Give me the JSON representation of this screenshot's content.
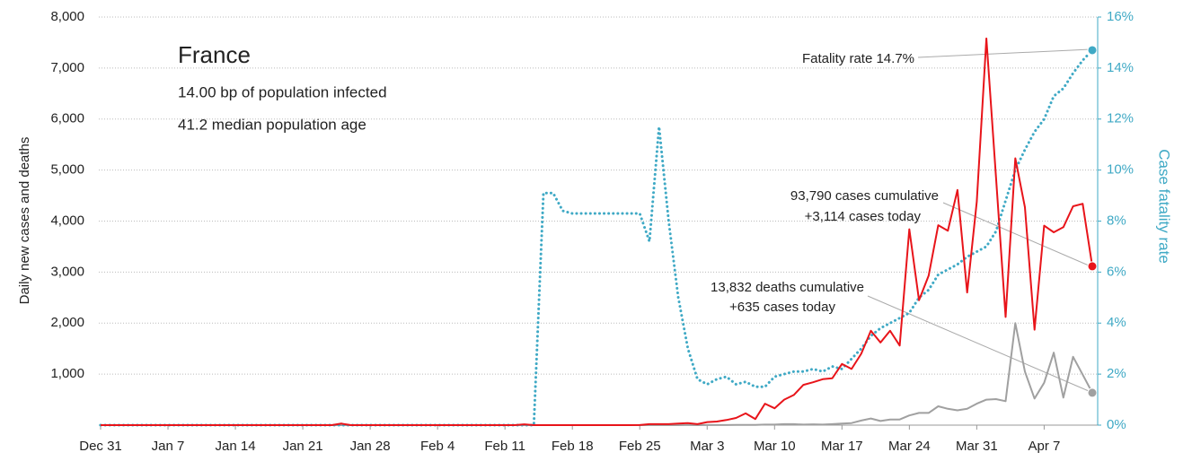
{
  "chart_data": {
    "type": "line",
    "annotations": [
      "France",
      "14.00 bp of population infected",
      "41.2 median population age",
      "Fatality rate 14.7%",
      "93,790 cases cumulative",
      "+3,114 cases today",
      "13,832 deaths cumulative",
      "+635 cases today"
    ],
    "ylabel": "Daily new cases and deaths",
    "y2label": "Case fatality rate",
    "categories": [
      "Dec 31",
      null,
      null,
      null,
      null,
      null,
      null,
      "Jan 7",
      null,
      null,
      null,
      null,
      null,
      null,
      "Jan 14",
      null,
      null,
      null,
      null,
      null,
      null,
      "Jan 21",
      null,
      null,
      null,
      null,
      null,
      null,
      "Jan 28",
      null,
      null,
      null,
      null,
      null,
      null,
      "Feb 4",
      null,
      null,
      null,
      null,
      null,
      null,
      "Feb 11",
      null,
      null,
      null,
      null,
      null,
      null,
      "Feb 18",
      null,
      null,
      null,
      null,
      null,
      null,
      "Feb 25",
      null,
      null,
      null,
      null,
      null,
      null,
      "Mar 3",
      null,
      null,
      null,
      null,
      null,
      null,
      "Mar 10",
      null,
      null,
      null,
      null,
      null,
      null,
      "Mar 17",
      null,
      null,
      null,
      null,
      null,
      null,
      "Mar 24",
      null,
      null,
      null,
      null,
      null,
      null,
      "Mar 31",
      null,
      null,
      null,
      null,
      null,
      null,
      "Apr 7",
      null,
      null,
      null,
      null,
      null
    ],
    "series": [
      {
        "name": "Cases",
        "color": "#e8141a",
        "style": "solid",
        "values": [
          0,
          0,
          0,
          0,
          0,
          0,
          0,
          0,
          0,
          0,
          0,
          0,
          0,
          0,
          0,
          0,
          0,
          0,
          0,
          0,
          0,
          0,
          0,
          0,
          0,
          30,
          0,
          0,
          0,
          0,
          0,
          0,
          0,
          0,
          0,
          0,
          0,
          0,
          0,
          0,
          0,
          0,
          0,
          0,
          15,
          0,
          0,
          0,
          0,
          0,
          0,
          0,
          0,
          0,
          0,
          0,
          2,
          20,
          20,
          20,
          30,
          40,
          20,
          60,
          70,
          100,
          140,
          230,
          120,
          420,
          330,
          500,
          590,
          790,
          840,
          900,
          920,
          1200,
          1100,
          1400,
          1850,
          1620,
          1850,
          1560,
          3840,
          2450,
          2930,
          3920,
          3810,
          4610,
          2600,
          4380,
          7580,
          4860,
          2120,
          5230,
          4270,
          1870,
          3910,
          3780,
          3880,
          4290,
          4340,
          3114
        ]
      },
      {
        "name": "Deaths",
        "color": "#a0a0a0",
        "style": "solid",
        "values": [
          0,
          0,
          0,
          0,
          0,
          0,
          0,
          0,
          0,
          0,
          0,
          0,
          0,
          0,
          0,
          0,
          0,
          0,
          0,
          0,
          0,
          0,
          0,
          0,
          0,
          0,
          0,
          0,
          0,
          0,
          0,
          0,
          0,
          0,
          0,
          0,
          0,
          0,
          0,
          0,
          0,
          0,
          0,
          0,
          0,
          0,
          0,
          0,
          0,
          0,
          0,
          0,
          0,
          0,
          0,
          0,
          0,
          0,
          0,
          0,
          0,
          1,
          0,
          1,
          1,
          2,
          3,
          5,
          5,
          10,
          10,
          20,
          20,
          10,
          15,
          10,
          20,
          30,
          40,
          90,
          130,
          80,
          110,
          110,
          190,
          240,
          240,
          370,
          320,
          290,
          320,
          420,
          500,
          510,
          470,
          2000,
          1050,
          520,
          830,
          1420,
          540,
          1340,
          990,
          635
        ]
      },
      {
        "name": "Fatality rate",
        "color": "#3fa9c5",
        "style": "dotted",
        "axis": "y2",
        "values": [
          0,
          0,
          0,
          0,
          0,
          0,
          0,
          0,
          0,
          0,
          0,
          0,
          0,
          0,
          0,
          0,
          0,
          0,
          0,
          0,
          0,
          0,
          0,
          0,
          0,
          0,
          0,
          0,
          0,
          0,
          0,
          0,
          0,
          0,
          0,
          0,
          0,
          0,
          0,
          0,
          0,
          0,
          0,
          0,
          0,
          0,
          9.1,
          9.1,
          8.4,
          8.3,
          8.3,
          8.3,
          8.3,
          8.3,
          8.3,
          8.3,
          8.3,
          7.2,
          11.7,
          8.0,
          5.0,
          3.0,
          1.8,
          1.6,
          1.8,
          1.9,
          1.6,
          1.7,
          1.5,
          1.5,
          1.9,
          2.0,
          2.1,
          2.1,
          2.2,
          2.1,
          2.3,
          2.2,
          2.6,
          3.0,
          3.5,
          3.8,
          4.0,
          4.2,
          4.4,
          5.0,
          5.3,
          5.9,
          6.1,
          6.3,
          6.6,
          6.8,
          7.0,
          7.6,
          8.8,
          10.0,
          10.8,
          11.5,
          12.0,
          12.9,
          13.2,
          13.8,
          14.3,
          14.7
        ]
      }
    ],
    "ylim": [
      0,
      8000
    ],
    "yticks": [
      {
        "value": 1000,
        "label": "1,000"
      },
      {
        "value": 2000,
        "label": "2,000"
      },
      {
        "value": 3000,
        "label": "3,000"
      },
      {
        "value": 4000,
        "label": "4,000"
      },
      {
        "value": 5000,
        "label": "5,000"
      },
      {
        "value": 6000,
        "label": "6,000"
      },
      {
        "value": 7000,
        "label": "7,000"
      },
      {
        "value": 8000,
        "label": "8,000"
      }
    ],
    "y2lim": [
      0,
      16
    ],
    "y2ticks": [
      {
        "value": 0,
        "label": "0%"
      },
      {
        "value": 2,
        "label": "2%"
      },
      {
        "value": 4,
        "label": "4%"
      },
      {
        "value": 6,
        "label": "6%"
      },
      {
        "value": 8,
        "label": "8%"
      },
      {
        "value": 10,
        "label": "10%"
      },
      {
        "value": 12,
        "label": "12%"
      },
      {
        "value": 14,
        "label": "14%"
      },
      {
        "value": 16,
        "label": "16%"
      }
    ],
    "grid": true
  }
}
